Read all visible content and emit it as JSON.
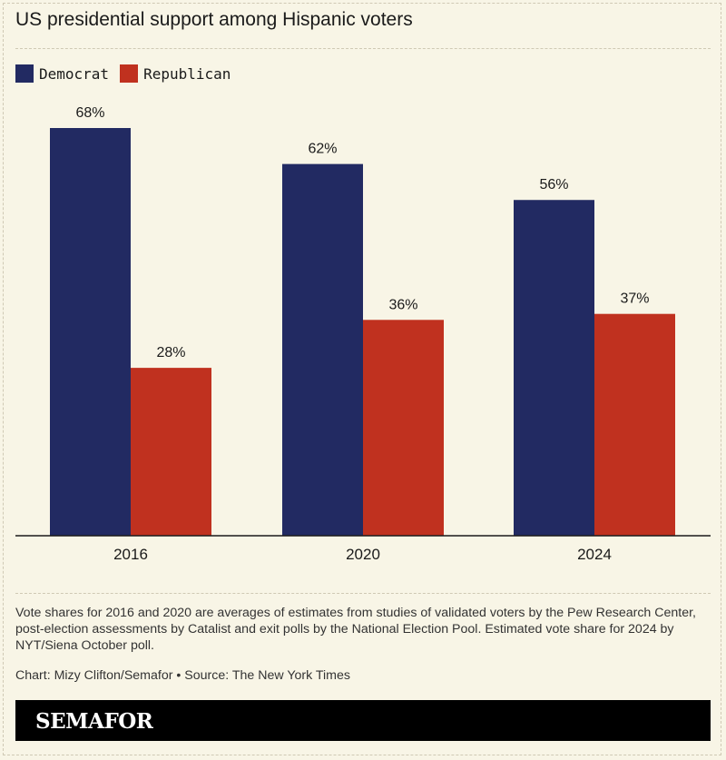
{
  "title": "US presidential support among Hispanic voters",
  "legend": [
    {
      "label": "Democrat",
      "color": "#222a62"
    },
    {
      "label": "Republican",
      "color": "#c0311f"
    }
  ],
  "chart_data": {
    "type": "bar",
    "categories": [
      "2016",
      "2020",
      "2024"
    ],
    "series": [
      {
        "name": "Democrat",
        "values": [
          68,
          62,
          56
        ],
        "color": "#222a62"
      },
      {
        "name": "Republican",
        "values": [
          28,
          36,
          37
        ],
        "color": "#c0311f"
      }
    ],
    "value_labels": {
      "Democrat": [
        "68%",
        "62%",
        "56%"
      ],
      "Republican": [
        "28%",
        "36%",
        "37%"
      ]
    },
    "ylim": [
      0,
      68
    ],
    "grid": false,
    "legend_position": "top-left"
  },
  "note": "Vote shares for 2016 and 2020 are averages of estimates from studies of validated voters by the Pew Research Center, post-election assessments by Catalist and exit polls by the National Election Pool. Estimated vote share for 2024 by NYT/Siena October poll.",
  "credit": "Chart: Mizy Clifton/Semafor • Source: The New York Times",
  "brand": "SEMAFOR"
}
